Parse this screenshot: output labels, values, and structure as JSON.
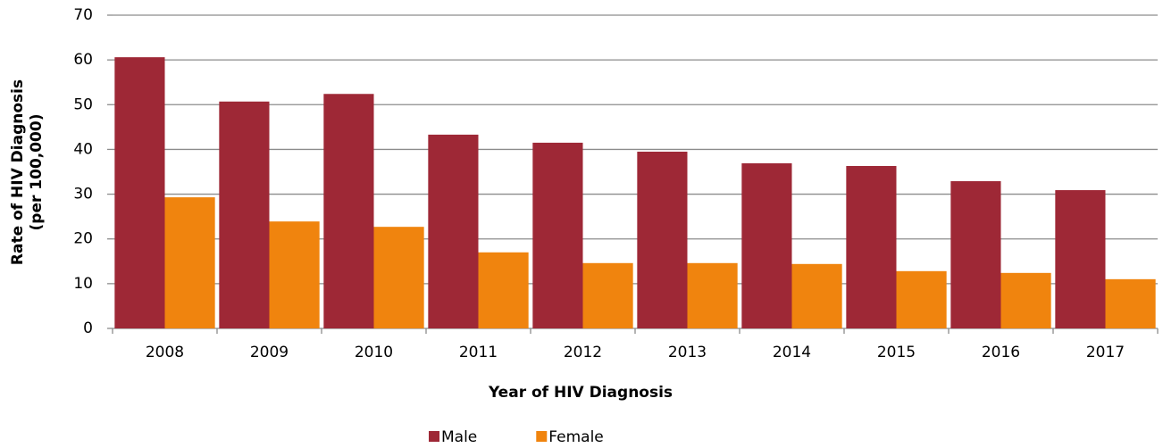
{
  "chart_data": {
    "type": "bar",
    "xlabel": "Year of HIV Diagnosis",
    "ylabel": [
      "Rate of HIV Diagnosis",
      "(per 100,000)"
    ],
    "categories": [
      "2008",
      "2009",
      "2010",
      "2011",
      "2012",
      "2013",
      "2014",
      "2015",
      "2016",
      "2017"
    ],
    "series": [
      {
        "name": "Male",
        "color": "#9e2836",
        "values": [
          60.6,
          50.7,
          52.4,
          43.3,
          41.5,
          39.5,
          36.9,
          36.3,
          32.9,
          30.9
        ]
      },
      {
        "name": "Female",
        "color": "#f0840e",
        "values": [
          29.3,
          23.9,
          22.7,
          17.0,
          14.6,
          14.6,
          14.4,
          12.8,
          12.4,
          11.0
        ]
      }
    ],
    "ylim": [
      0,
      70
    ],
    "yticks": [
      0,
      10,
      20,
      30,
      40,
      50,
      60,
      70
    ],
    "grid": true,
    "legend": "bottom"
  }
}
